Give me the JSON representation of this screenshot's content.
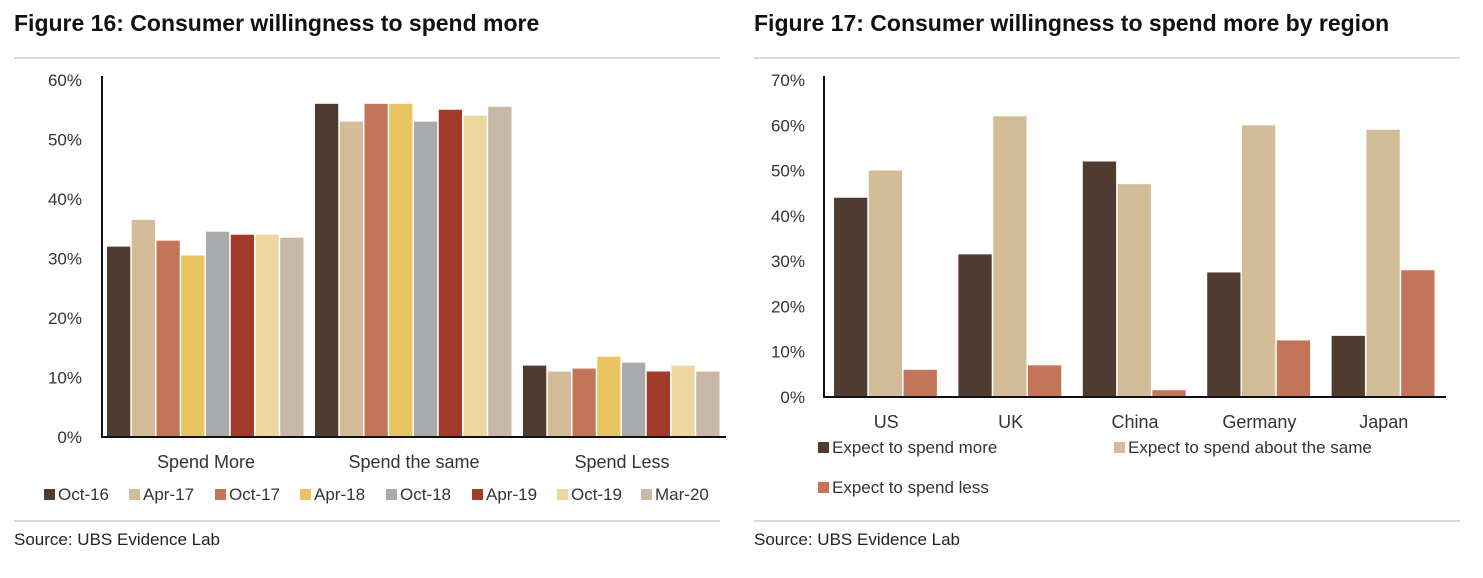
{
  "left": {
    "title": "Figure 16: Consumer willingness to spend more",
    "source": "Source:  UBS Evidence Lab"
  },
  "right": {
    "title": "Figure 17: Consumer willingness to spend more by region",
    "source": "Source:  UBS Evidence Lab"
  },
  "chart_data": [
    {
      "type": "bar",
      "title": "Figure 16: Consumer willingness to spend more",
      "categories": [
        "Spend More",
        "Spend the same",
        "Spend Less"
      ],
      "ylim": [
        0,
        60
      ],
      "yticks": [
        "0%",
        "10%",
        "20%",
        "30%",
        "40%",
        "50%",
        "60%"
      ],
      "grid": false,
      "legend_position": "bottom",
      "series": [
        {
          "name": "Oct-16",
          "color": "#4f3b2f",
          "values": [
            32,
            56,
            12
          ]
        },
        {
          "name": "Apr-17",
          "color": "#d2bd98",
          "values": [
            36.5,
            53,
            11
          ]
        },
        {
          "name": "Oct-17",
          "color": "#c47458",
          "values": [
            33,
            56,
            11.5
          ]
        },
        {
          "name": "Apr-18",
          "color": "#e8c463",
          "values": [
            30.5,
            56,
            13.5
          ]
        },
        {
          "name": "Oct-18",
          "color": "#a9aaac",
          "values": [
            34.5,
            53,
            12.5
          ]
        },
        {
          "name": "Apr-19",
          "color": "#a23a2a",
          "values": [
            34,
            55,
            11
          ]
        },
        {
          "name": "Oct-19",
          "color": "#ecd7a0",
          "values": [
            34,
            54,
            12
          ]
        },
        {
          "name": "Mar-20",
          "color": "#c9b7a7",
          "values": [
            33.5,
            55.5,
            11
          ]
        }
      ]
    },
    {
      "type": "bar",
      "title": "Figure 17: Consumer willingness to spend more by region",
      "categories": [
        "US",
        "UK",
        "China",
        "Germany",
        "Japan"
      ],
      "ylim": [
        0,
        70
      ],
      "yticks": [
        "0%",
        "10%",
        "20%",
        "30%",
        "40%",
        "50%",
        "60%",
        "70%"
      ],
      "grid": false,
      "legend_position": "bottom",
      "series": [
        {
          "name": "Expect to spend more",
          "color": "#4f3b2f",
          "values": [
            44,
            31.5,
            52,
            27.5,
            13.5
          ]
        },
        {
          "name": "Expect to spend about the same",
          "color": "#d2bd98",
          "values": [
            50,
            62,
            47,
            60,
            59
          ]
        },
        {
          "name": "Expect to spend less",
          "color": "#c47458",
          "values": [
            6,
            7,
            1.5,
            12.5,
            28
          ]
        }
      ]
    }
  ]
}
